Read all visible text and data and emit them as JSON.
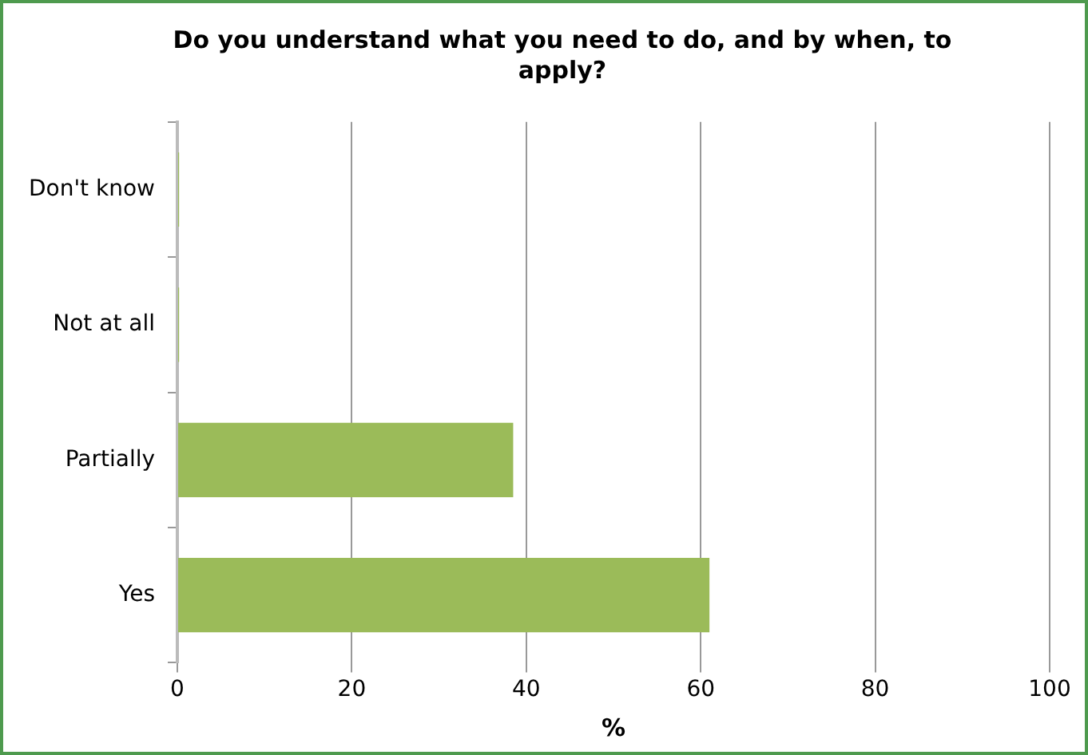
{
  "chart_data": {
    "type": "bar",
    "orientation": "horizontal",
    "title": "Do you understand what you need to do, and by when, to apply?",
    "xlabel": "%",
    "categories": [
      "Don't know",
      "Not at all",
      "Partially",
      "Yes"
    ],
    "values": [
      0.2,
      0.2,
      38.5,
      61
    ],
    "color": "#9bbb59",
    "xlim": [
      0,
      100
    ],
    "xticks": [
      0,
      20,
      40,
      60,
      80,
      100
    ],
    "grid": "x",
    "legend": false
  }
}
